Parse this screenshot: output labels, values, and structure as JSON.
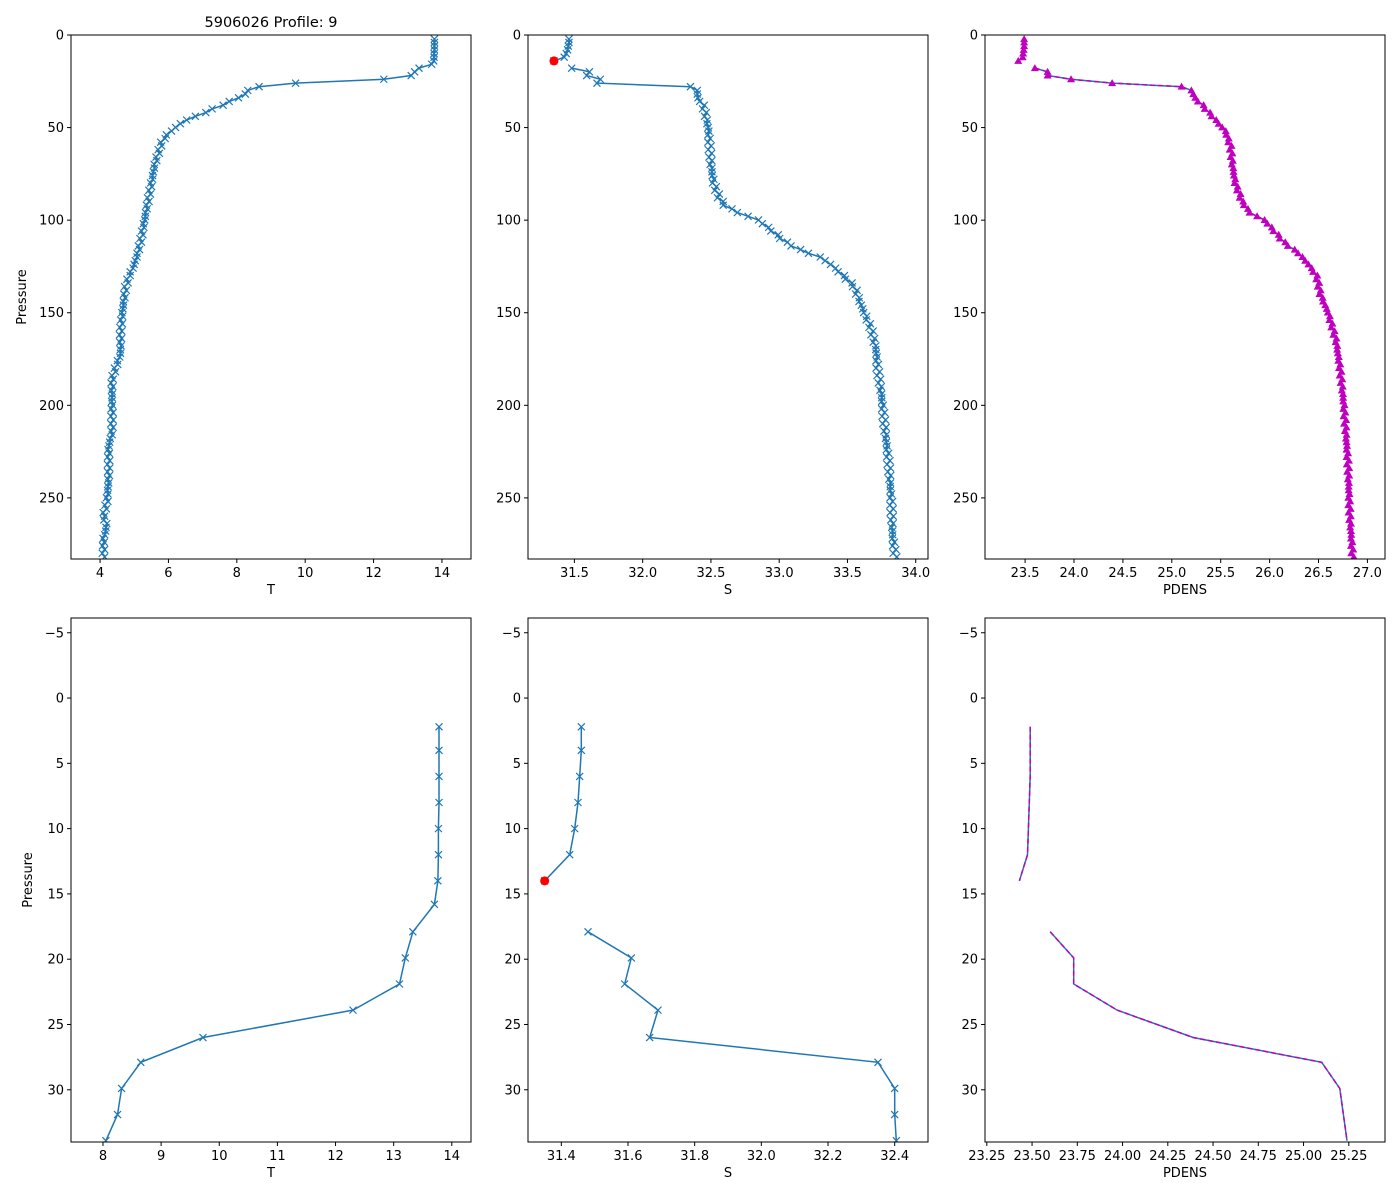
{
  "chart_data": {
    "type": "line",
    "title": "5906026 Profile: 9",
    "colors": {
      "line": "#1f77b4",
      "density": "#bf00bf",
      "flag": "#ff0000"
    },
    "surface_obs": {
      "pressure": [
        2.2,
        4,
        6,
        8,
        10,
        12,
        14,
        15.8,
        17.9,
        19.9,
        21.9,
        23.9,
        26,
        27.9,
        29.9,
        31.9,
        33.9
      ],
      "T": [
        13.78,
        13.78,
        13.78,
        13.78,
        13.77,
        13.77,
        13.76,
        13.7,
        13.33,
        13.2,
        13.1,
        12.3,
        9.72,
        8.65,
        8.32,
        8.25,
        8.05
      ],
      "S": [
        31.46,
        31.46,
        31.455,
        31.45,
        31.44,
        31.425,
        31.35,
        null,
        31.48,
        31.61,
        31.59,
        31.69,
        31.665,
        32.35,
        32.4,
        32.4,
        32.405
      ],
      "PDENS": [
        23.49,
        23.49,
        23.49,
        23.485,
        23.48,
        23.475,
        23.43,
        null,
        23.6,
        23.73,
        23.73,
        23.97,
        24.39,
        25.1,
        25.2,
        25.22,
        25.24
      ]
    },
    "flagged_point": {
      "variable": "S",
      "pressure": 14,
      "value": 31.35
    },
    "deep_profile_knots": {
      "T": [
        [
          36,
          7.8
        ],
        [
          40,
          7.3
        ],
        [
          44,
          6.8
        ],
        [
          46,
          6.5
        ],
        [
          50,
          6.2
        ],
        [
          54,
          5.95
        ],
        [
          58,
          5.8
        ],
        [
          64,
          5.7
        ],
        [
          70,
          5.6
        ],
        [
          80,
          5.5
        ],
        [
          90,
          5.4
        ],
        [
          100,
          5.3
        ],
        [
          110,
          5.2
        ],
        [
          118,
          5.1
        ],
        [
          124,
          5.0
        ],
        [
          130,
          4.85
        ],
        [
          136,
          4.75
        ],
        [
          150,
          4.65
        ],
        [
          160,
          4.6
        ],
        [
          172,
          4.6
        ],
        [
          180,
          4.45
        ],
        [
          186,
          4.35
        ],
        [
          200,
          4.35
        ],
        [
          215,
          4.35
        ],
        [
          222,
          4.25
        ],
        [
          240,
          4.25
        ],
        [
          252,
          4.2
        ],
        [
          260,
          4.1
        ],
        [
          265,
          4.2
        ],
        [
          272,
          4.1
        ],
        [
          282,
          4.1
        ]
      ],
      "S": [
        [
          36,
          32.43
        ],
        [
          40,
          32.45
        ],
        [
          50,
          32.48
        ],
        [
          60,
          32.49
        ],
        [
          70,
          32.5
        ],
        [
          80,
          32.52
        ],
        [
          88,
          32.56
        ],
        [
          92,
          32.6
        ],
        [
          96,
          32.7
        ],
        [
          100,
          32.85
        ],
        [
          106,
          32.95
        ],
        [
          112,
          33.05
        ],
        [
          116,
          33.15
        ],
        [
          120,
          33.3
        ],
        [
          124,
          33.38
        ],
        [
          130,
          33.47
        ],
        [
          136,
          33.55
        ],
        [
          146,
          33.6
        ],
        [
          158,
          33.67
        ],
        [
          170,
          33.71
        ],
        [
          180,
          33.72
        ],
        [
          195,
          33.75
        ],
        [
          210,
          33.77
        ],
        [
          230,
          33.8
        ],
        [
          250,
          33.82
        ],
        [
          270,
          33.83
        ],
        [
          282,
          33.85
        ]
      ],
      "PDENS": [
        [
          36,
          25.28
        ],
        [
          40,
          25.35
        ],
        [
          46,
          25.45
        ],
        [
          52,
          25.55
        ],
        [
          60,
          25.6
        ],
        [
          70,
          25.62
        ],
        [
          80,
          25.65
        ],
        [
          90,
          25.72
        ],
        [
          96,
          25.8
        ],
        [
          100,
          25.95
        ],
        [
          106,
          26.05
        ],
        [
          112,
          26.15
        ],
        [
          118,
          26.3
        ],
        [
          124,
          26.4
        ],
        [
          130,
          26.48
        ],
        [
          140,
          26.52
        ],
        [
          150,
          26.6
        ],
        [
          165,
          26.68
        ],
        [
          180,
          26.72
        ],
        [
          200,
          26.76
        ],
        [
          230,
          26.8
        ],
        [
          260,
          26.82
        ],
        [
          282,
          26.85
        ]
      ]
    },
    "sample_step": 2,
    "panels": [
      {
        "var": "T",
        "xlabel": "T",
        "ylabel": "Pressure",
        "xlim": [
          3.15,
          14.85
        ],
        "ylim": [
          283,
          0
        ],
        "xticks": [
          "4",
          "6",
          "8",
          "10",
          "12",
          "14"
        ],
        "yticks": [
          "0",
          "50",
          "100",
          "150",
          "200",
          "250"
        ],
        "range": "full",
        "marker": "x"
      },
      {
        "var": "S",
        "xlabel": "S",
        "ylabel": "",
        "xlim": [
          31.16,
          34.09
        ],
        "ylim": [
          283,
          0
        ],
        "xticks": [
          "31.5",
          "32.0",
          "32.5",
          "33.0",
          "33.5",
          "34.0"
        ],
        "yticks": [
          "0",
          "50",
          "100",
          "150",
          "200",
          "250"
        ],
        "range": "full",
        "marker": "x"
      },
      {
        "var": "PDENS",
        "xlabel": "PDENS",
        "ylabel": "",
        "xlim": [
          23.09,
          27.18
        ],
        "ylim": [
          283,
          0
        ],
        "xticks": [
          "23.5",
          "24.0",
          "24.5",
          "25.0",
          "25.5",
          "26.0",
          "26.5",
          "27.0"
        ],
        "yticks": [
          "0",
          "50",
          "100",
          "150",
          "200",
          "250"
        ],
        "range": "full",
        "marker": "triangle"
      },
      {
        "var": "T",
        "xlabel": "T",
        "ylabel": "Pressure",
        "xlim": [
          7.45,
          14.33
        ],
        "ylim": [
          34.0,
          -6.13
        ],
        "xticks": [
          "8",
          "9",
          "10",
          "11",
          "12",
          "13",
          "14"
        ],
        "yticks": [
          "−5",
          "0",
          "5",
          "10",
          "15",
          "20",
          "25",
          "30"
        ],
        "range": "surface",
        "marker": "x"
      },
      {
        "var": "S",
        "xlabel": "S",
        "ylabel": "",
        "xlim": [
          31.3,
          32.5
        ],
        "ylim": [
          34.0,
          -6.13
        ],
        "xticks": [
          "31.4",
          "31.6",
          "31.8",
          "32.0",
          "32.2",
          "32.4"
        ],
        "yticks": [
          "−5",
          "0",
          "5",
          "10",
          "15",
          "20",
          "25",
          "30"
        ],
        "range": "surface",
        "marker": "x"
      },
      {
        "var": "PDENS",
        "xlabel": "PDENS",
        "ylabel": "",
        "xlim": [
          23.24,
          25.45
        ],
        "ylim": [
          34.0,
          -6.13
        ],
        "xticks": [
          "23.25",
          "23.50",
          "23.75",
          "24.00",
          "24.25",
          "24.50",
          "24.75",
          "25.00",
          "25.25"
        ],
        "yticks": [
          "−5",
          "0",
          "5",
          "10",
          "15",
          "20",
          "25",
          "30"
        ],
        "range": "surface",
        "marker": "none"
      }
    ]
  }
}
